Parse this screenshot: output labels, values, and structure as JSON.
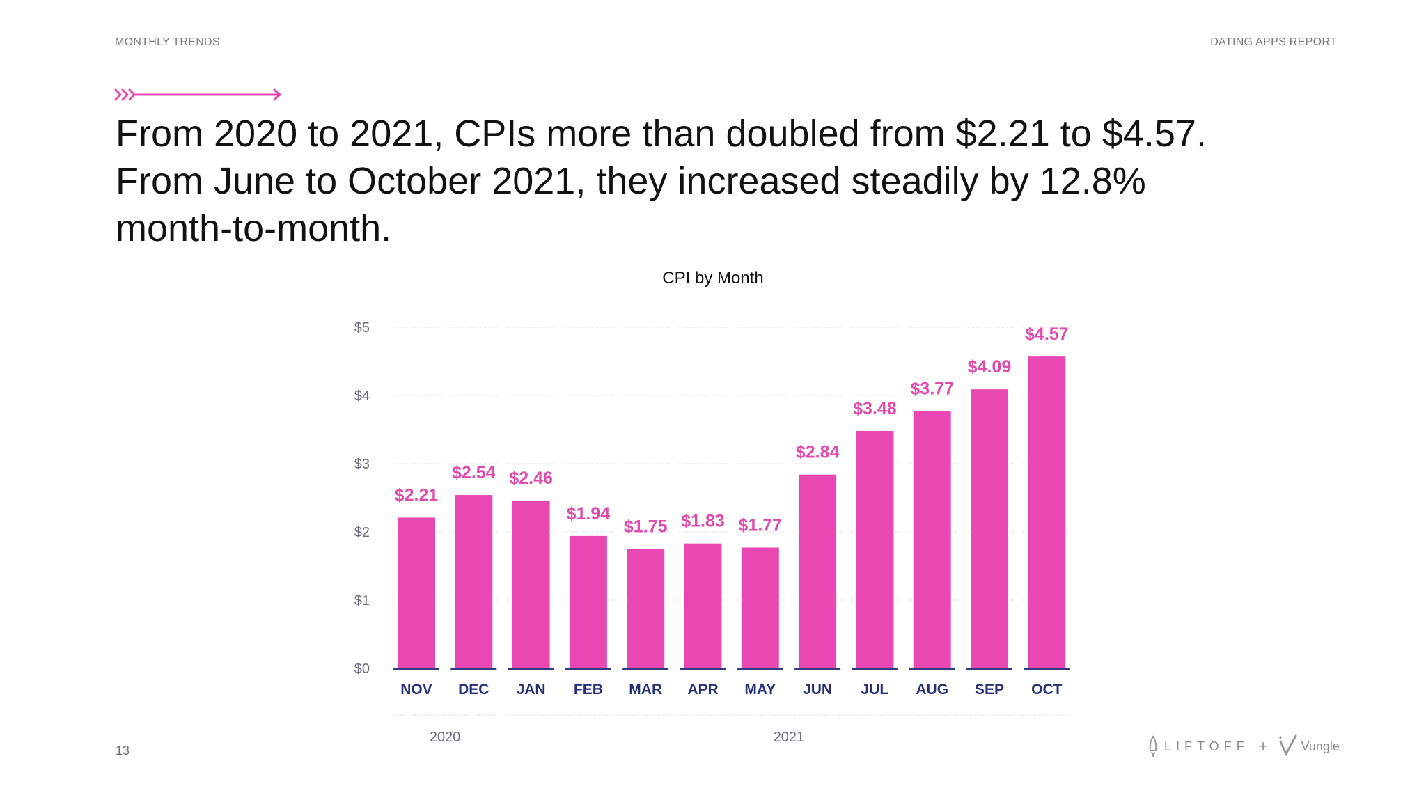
{
  "header": {
    "section": "MONTHLY TRENDS",
    "report": "DATING APPS REPORT"
  },
  "headline": "From 2020 to 2021, CPIs more than doubled from $2.21 to $4.57. From June to October 2021, they increased steadily by 12.8% month-to-month.",
  "page_number": "13",
  "logos": {
    "primary": "LIFTOFF",
    "joiner": "+",
    "secondary": "Vungle"
  },
  "colors": {
    "bar": "#E948B3",
    "value_label": "#E04BAE",
    "month_label": "#27317A",
    "axis_text": "#6B6F80",
    "gridline": "#d9d9d9",
    "baseline": "#2F3A82",
    "accent_arrow": "#E948B3"
  },
  "chart_data": {
    "type": "bar",
    "title": "CPI by Month",
    "categories": [
      "NOV",
      "DEC",
      "JAN",
      "FEB",
      "MAR",
      "APR",
      "MAY",
      "JUN",
      "JUL",
      "AUG",
      "SEP",
      "OCT"
    ],
    "values": [
      2.21,
      2.54,
      2.46,
      1.94,
      1.75,
      1.83,
      1.77,
      2.84,
      3.48,
      3.77,
      4.09,
      4.57
    ],
    "value_labels": [
      "$2.21",
      "$2.54",
      "$2.46",
      "$1.94",
      "$1.75",
      "$1.83",
      "$1.77",
      "$2.84",
      "$3.48",
      "$3.77",
      "$4.09",
      "$4.57"
    ],
    "y_ticks": [
      "$0",
      "$1",
      "$2",
      "$3",
      "$4",
      "$5"
    ],
    "ylim": [
      0,
      5
    ],
    "grid": true,
    "year_groups": [
      {
        "label": "2020",
        "from": "NOV",
        "to": "DEC"
      },
      {
        "label": "2021",
        "from": "JAN",
        "to": "OCT"
      }
    ]
  }
}
